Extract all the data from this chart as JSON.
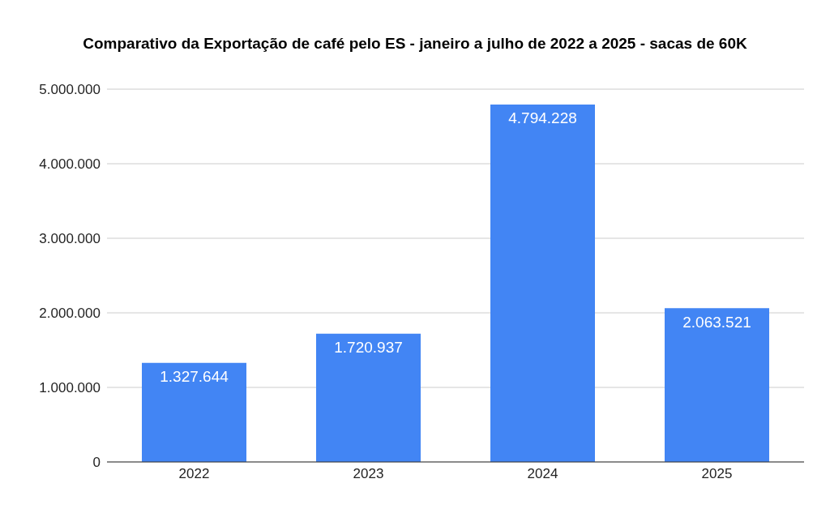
{
  "chart_data": {
    "type": "bar",
    "title": "Comparativo da Exportação de café pelo ES - janeiro a julho de 2022 a 2025 - sacas de 60K",
    "categories": [
      "2022",
      "2023",
      "2024",
      "2025"
    ],
    "values": [
      1327644,
      1720937,
      4794228,
      2063521
    ],
    "value_labels": [
      "1.327.644",
      "1.720.937",
      "4.794.228",
      "2.063.521"
    ],
    "color": "#4285f4",
    "ylim": [
      0,
      5000000
    ],
    "yticks": [
      {
        "value": 0,
        "label": "0"
      },
      {
        "value": 1000000,
        "label": "1.000.000"
      },
      {
        "value": 2000000,
        "label": "2.000.000"
      },
      {
        "value": 3000000,
        "label": "3.000.000"
      },
      {
        "value": 4000000,
        "label": "4.000.000"
      },
      {
        "value": 5000000,
        "label": "5.000.000"
      }
    ],
    "grid": "y",
    "legend": false
  }
}
